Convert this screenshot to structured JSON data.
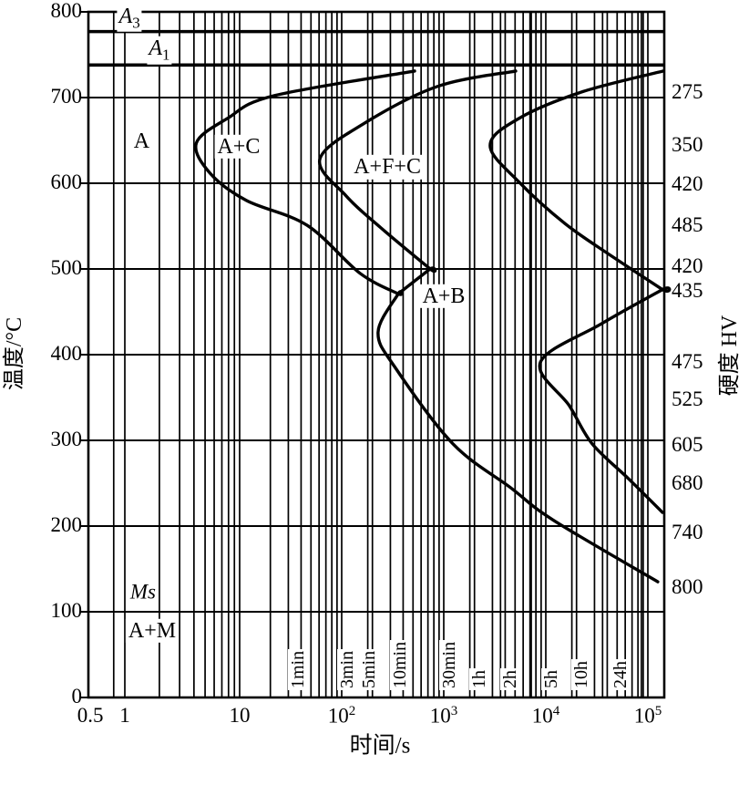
{
  "chart_data": {
    "type": "line",
    "x_axis": {
      "title": "时间/s",
      "scale": "log",
      "range": [
        0.5,
        150000
      ],
      "ticks": [
        {
          "t": 0.5,
          "label": "0.5"
        },
        {
          "t": 1,
          "label": "1"
        },
        {
          "t": 10,
          "label": "10"
        },
        {
          "t": 100,
          "label": "10",
          "sup": "2"
        },
        {
          "t": 1000,
          "label": "10",
          "sup": "3"
        },
        {
          "t": 10000,
          "label": "10",
          "sup": "4"
        },
        {
          "t": 100000,
          "label": "10",
          "sup": "5"
        }
      ],
      "extra_gridline_ts": [
        0.8
      ]
    },
    "y_axis": {
      "title": "温度/°C",
      "range": [
        0,
        800
      ],
      "tick_step": 100,
      "ticks": [
        800,
        700,
        600,
        500,
        400,
        300,
        200,
        100,
        0
      ]
    },
    "y_axis_right": {
      "title": "硬度 HV",
      "labels": [
        {
          "label": "275",
          "temp": 706
        },
        {
          "label": "350",
          "temp": 645
        },
        {
          "label": "420",
          "temp": 599
        },
        {
          "label": "485",
          "temp": 551
        },
        {
          "label": "420",
          "temp": 503
        },
        {
          "label": "435",
          "temp": 474
        },
        {
          "label": "475",
          "temp": 392
        },
        {
          "label": "525",
          "temp": 348
        },
        {
          "label": "605",
          "temp": 295
        },
        {
          "label": "680",
          "temp": 250
        },
        {
          "label": "740",
          "temp": 193
        },
        {
          "label": "800",
          "temp": 129
        }
      ]
    },
    "reference_lines": [
      {
        "id": "A3",
        "label": "A",
        "sub": "3",
        "temp": 777,
        "label_t": 1.1,
        "label_temp": 793
      },
      {
        "id": "A1",
        "label": "A",
        "sub": "1",
        "temp": 738,
        "label_t": 2.0,
        "label_temp": 755
      }
    ],
    "ms_label": {
      "label": "Ms",
      "t": 1.44,
      "temp": 123
    },
    "phase_labels": [
      {
        "label": "A",
        "t": 1.4,
        "temp": 649
      },
      {
        "label": "A+C",
        "t": 9.8,
        "temp": 643
      },
      {
        "label": "A+F+C",
        "t": 280,
        "temp": 619
      },
      {
        "label": "A+B",
        "t": 1000,
        "temp": 468
      },
      {
        "label": "A+M",
        "t": 1.73,
        "temp": 78
      }
    ],
    "time_markers": [
      {
        "label": "1min",
        "seconds": 60
      },
      {
        "label": "3min",
        "seconds": 180
      },
      {
        "label": "5min",
        "seconds": 300
      },
      {
        "label": "10min",
        "seconds": 600
      },
      {
        "label": "30min",
        "seconds": 1800
      },
      {
        "label": "1h",
        "seconds": 3600
      },
      {
        "label": "2h",
        "seconds": 7200
      },
      {
        "label": "5h",
        "seconds": 18000
      },
      {
        "label": "10h",
        "seconds": 36000
      },
      {
        "label": "24h",
        "seconds": 86400
      }
    ],
    "series": [
      {
        "name": "transformation-start",
        "points": [
          [
            518,
            731
          ],
          [
            21.4,
            702
          ],
          [
            7.9,
            676
          ],
          [
            4.2,
            647
          ],
          [
            5.5,
            612
          ],
          [
            11.6,
            580
          ],
          [
            45.8,
            551
          ],
          [
            151,
            495
          ],
          [
            358,
            471
          ],
          [
            358,
            471
          ],
          [
            227,
            426
          ],
          [
            343,
            383
          ],
          [
            1230,
            296
          ],
          [
            4490,
            245
          ],
          [
            11800,
            207
          ],
          [
            125000,
            135
          ]
        ]
      },
      {
        "name": "transformation-mid",
        "points": [
          [
            5070,
            731
          ],
          [
            867,
            713
          ],
          [
            167,
            670
          ],
          [
            61,
            628
          ],
          [
            111,
            585
          ],
          [
            242,
            548
          ],
          [
            734,
            500
          ],
          [
            734,
            500
          ],
          [
            358,
            471
          ]
        ]
      },
      {
        "name": "transformation-finish",
        "points": [
          [
            142000,
            731
          ],
          [
            23200,
            707
          ],
          [
            5510,
            676
          ],
          [
            2850,
            644
          ],
          [
            5510,
            601
          ],
          [
            15400,
            553
          ],
          [
            43000,
            516
          ],
          [
            139000,
            476
          ],
          [
            139000,
            476
          ],
          [
            35000,
            436
          ],
          [
            8840,
            391
          ],
          [
            17100,
            340
          ],
          [
            28500,
            296
          ],
          [
            65000,
            255
          ],
          [
            139000,
            216
          ]
        ]
      }
    ],
    "line_color": "#000000",
    "background": "#ffffff"
  }
}
